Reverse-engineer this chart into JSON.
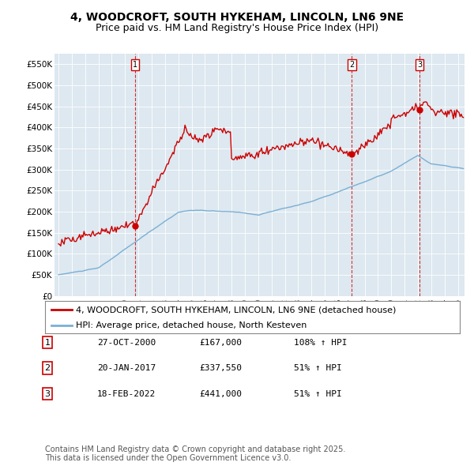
{
  "title": "4, WOODCROFT, SOUTH HYKEHAM, LINCOLN, LN6 9NE",
  "subtitle": "Price paid vs. HM Land Registry's House Price Index (HPI)",
  "ylim": [
    0,
    575000
  ],
  "yticks": [
    0,
    50000,
    100000,
    150000,
    200000,
    250000,
    300000,
    350000,
    400000,
    450000,
    500000,
    550000
  ],
  "ytick_labels": [
    "£0",
    "£50K",
    "£100K",
    "£150K",
    "£200K",
    "£250K",
    "£300K",
    "£350K",
    "£400K",
    "£450K",
    "£500K",
    "£550K"
  ],
  "background_color": "#ffffff",
  "plot_bg_color": "#dde8f0",
  "red_color": "#cc0000",
  "blue_color": "#7aafd4",
  "vline_color": "#cc0000",
  "sale_date_nums": [
    2000.75,
    2017.042,
    2022.125
  ],
  "sale_prices": [
    167000,
    337550,
    441000
  ],
  "sale_labels": [
    "1",
    "2",
    "3"
  ],
  "legend_label_red": "4, WOODCROFT, SOUTH HYKEHAM, LINCOLN, LN6 9NE (detached house)",
  "legend_label_blue": "HPI: Average price, detached house, North Kesteven",
  "table_rows": [
    [
      "1",
      "27-OCT-2000",
      "£167,000",
      "108% ↑ HPI"
    ],
    [
      "2",
      "20-JAN-2017",
      "£337,550",
      "51% ↑ HPI"
    ],
    [
      "3",
      "18-FEB-2022",
      "£441,000",
      "51% ↑ HPI"
    ]
  ],
  "footer": "Contains HM Land Registry data © Crown copyright and database right 2025.\nThis data is licensed under the Open Government Licence v3.0.",
  "title_fontsize": 10,
  "subtitle_fontsize": 9,
  "axis_fontsize": 7.5,
  "legend_fontsize": 8,
  "table_fontsize": 8,
  "footer_fontsize": 7
}
